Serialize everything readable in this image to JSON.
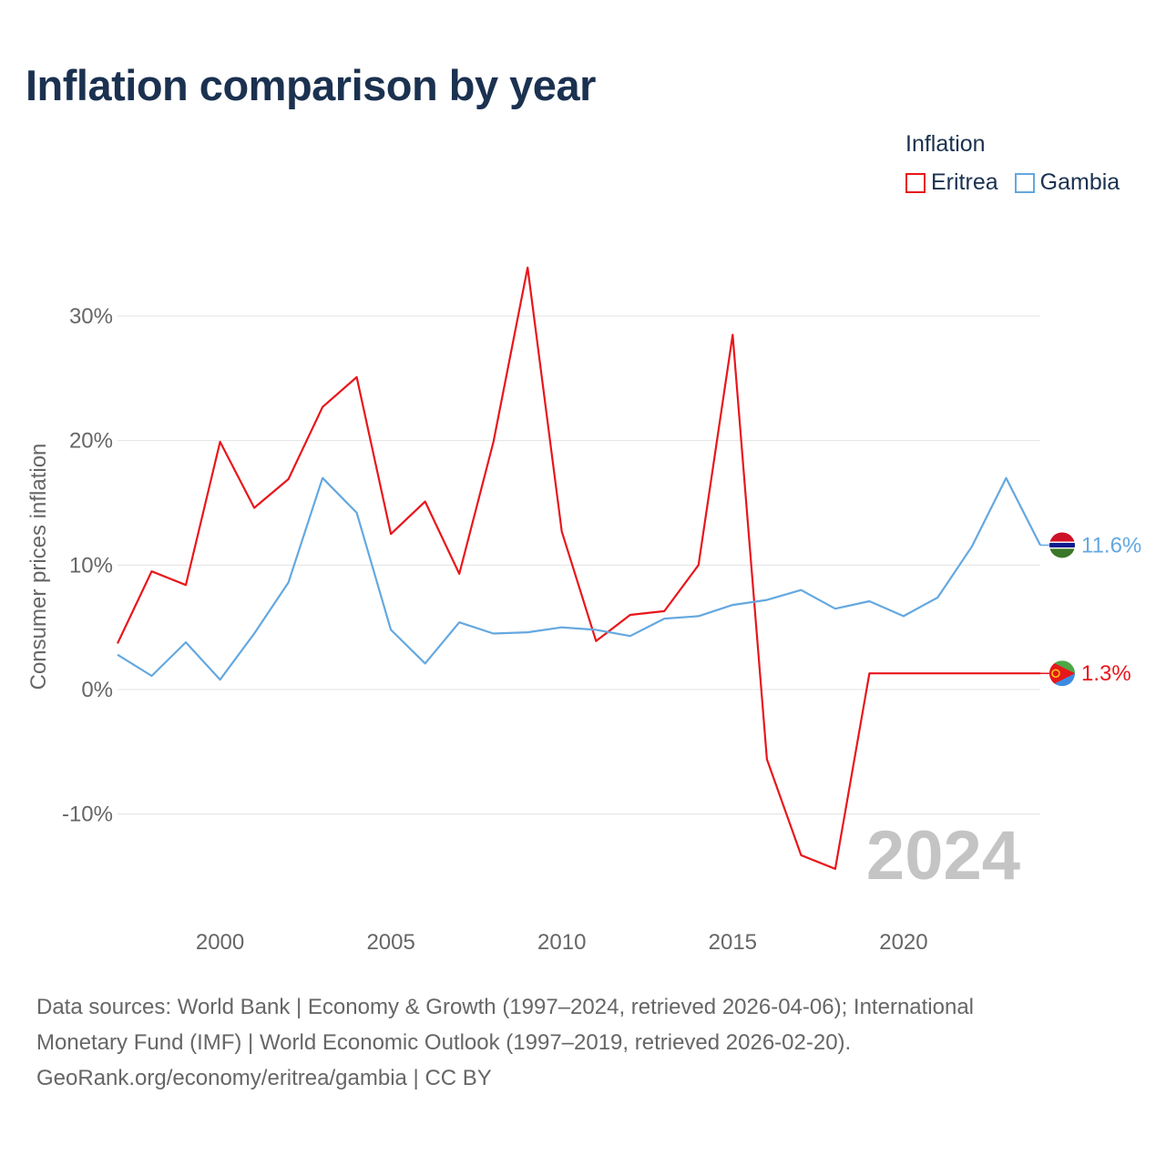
{
  "title": "Inflation comparison by year",
  "legend": {
    "title": "Inflation",
    "items": [
      {
        "name": "Eritrea",
        "color": "#e8161b"
      },
      {
        "name": "Gambia",
        "color": "#64a8e0"
      }
    ]
  },
  "chart_data": {
    "type": "line",
    "title": "Inflation comparison by year",
    "xlabel": "",
    "ylabel": "Consumer prices inflation",
    "xlim": [
      1997,
      2024
    ],
    "ylim": [
      -15,
      34
    ],
    "x_ticks": [
      2000,
      2005,
      2010,
      2015,
      2020
    ],
    "y_ticks": [
      30,
      20,
      10,
      0,
      -10
    ],
    "y_tick_labels": [
      "30%",
      "20%",
      "10%",
      "0%",
      "-10%"
    ],
    "grid": true,
    "year_watermark": "2024",
    "x": [
      1997,
      1998,
      1999,
      2000,
      2001,
      2002,
      2003,
      2004,
      2005,
      2006,
      2007,
      2008,
      2009,
      2010,
      2011,
      2012,
      2013,
      2014,
      2015,
      2016,
      2017,
      2018,
      2019,
      2020,
      2021,
      2022,
      2023,
      2024
    ],
    "series": [
      {
        "name": "Eritrea",
        "color": "#e8161b",
        "end_label": "1.3%",
        "flag": "eritrea-flag-icon",
        "values": [
          3.7,
          9.5,
          8.4,
          19.9,
          14.6,
          16.9,
          22.7,
          25.1,
          12.5,
          15.1,
          9.3,
          19.9,
          33.9,
          12.7,
          3.9,
          6.0,
          6.3,
          10.0,
          28.5,
          -5.6,
          -13.3,
          -14.4,
          1.3,
          1.3,
          1.3,
          1.3,
          1.3,
          1.3
        ]
      },
      {
        "name": "Gambia",
        "color": "#64a8e0",
        "end_label": "11.6%",
        "flag": "gambia-flag-icon",
        "values": [
          2.8,
          1.1,
          3.8,
          0.8,
          4.5,
          8.6,
          17.0,
          14.2,
          4.8,
          2.1,
          5.4,
          4.5,
          4.6,
          5.0,
          4.8,
          4.3,
          5.7,
          5.9,
          6.8,
          7.2,
          8.0,
          6.5,
          7.1,
          5.9,
          7.4,
          11.5,
          17.0,
          11.6
        ]
      }
    ]
  },
  "footer": {
    "line1": "Data sources: World Bank | Economy & Growth (1997–2024, retrieved 2026-04-06); International",
    "line2": "Monetary Fund (IMF) | World Economic Outlook (1997–2019, retrieved 2026-02-20).",
    "line3": "GeoRank.org/economy/eritrea/gambia | CC BY"
  }
}
